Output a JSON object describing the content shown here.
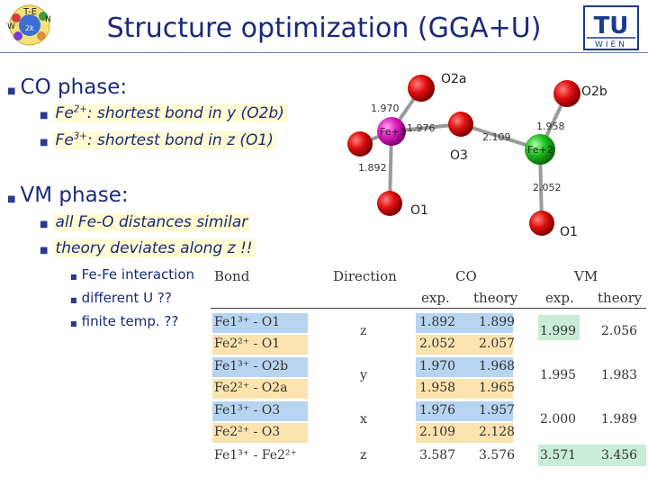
{
  "title": "Structure optimization (GGA+U)",
  "bullets": {
    "co_phase": "CO phase:",
    "fe2": {
      "ion": "Fe",
      "charge": "2+",
      "text": ": shortest bond in y (O2b)"
    },
    "fe3": {
      "ion": "Fe",
      "charge": "3+",
      "text": ": shortest bond in z (O1)"
    },
    "vm_phase": "VM phase:",
    "vm1": "all Fe-O distances similar",
    "vm2": "theory deviates  along z !!",
    "sub": [
      "Fe-Fe interaction",
      "different U  ??",
      "finite temp. ??"
    ]
  },
  "logo": {
    "text_tu": "TU",
    "text_wien": "WIEN"
  },
  "structure": {
    "labels": {
      "o2a": "O2a",
      "o2b": "O2b",
      "o3": "O3",
      "o1_left": "O1",
      "o1_right": "O1",
      "fe3": "Fe+3",
      "fe2": "Fe+2"
    },
    "distances": {
      "d1": "1.970",
      "d2": "1.976",
      "d3": "1.958",
      "d4": "2.109",
      "d5": "1.892",
      "d6": "2.052"
    },
    "colors": {
      "oxygen": "#e01010",
      "fe3": "#e020c0",
      "fe2": "#20c020",
      "bond": "#9a9a9a"
    }
  },
  "table": {
    "headers": {
      "bond": "Bond",
      "direction": "Direction",
      "co": "CO",
      "vm": "VM",
      "exp": "exp.",
      "theory": "theory"
    },
    "rows": [
      {
        "bond": "Fe1³⁺ - O1",
        "co_exp": "1.892",
        "co_th": "1.899"
      },
      {
        "bond": "Fe2²⁺ - O1",
        "co_exp": "2.052",
        "co_th": "2.057"
      },
      {
        "bond": "Fe1³⁺ - O2b",
        "co_exp": "1.970",
        "co_th": "1.968"
      },
      {
        "bond": "Fe2²⁺ - O2a",
        "co_exp": "1.958",
        "co_th": "1.965"
      },
      {
        "bond": "Fe1³⁺ - O3",
        "co_exp": "1.976",
        "co_th": "1.957"
      },
      {
        "bond": "Fe2²⁺ - O3",
        "co_exp": "2.109",
        "co_th": "2.128"
      },
      {
        "bond": "Fe1³⁺ - Fe2²⁺",
        "co_exp": "3.587",
        "co_th": "3.576"
      }
    ],
    "directions": [
      "z",
      "y",
      "x",
      "z"
    ],
    "vm": [
      {
        "exp": "1.999",
        "th": "2.056"
      },
      {
        "exp": "1.995",
        "th": "1.983"
      },
      {
        "exp": "2.000",
        "th": "1.989"
      },
      {
        "exp": "3.571",
        "th": "3.456"
      }
    ],
    "colors": {
      "blue": "#b7d4f0",
      "yellow": "#fbe3b0",
      "green": "#c8ecd6"
    }
  }
}
